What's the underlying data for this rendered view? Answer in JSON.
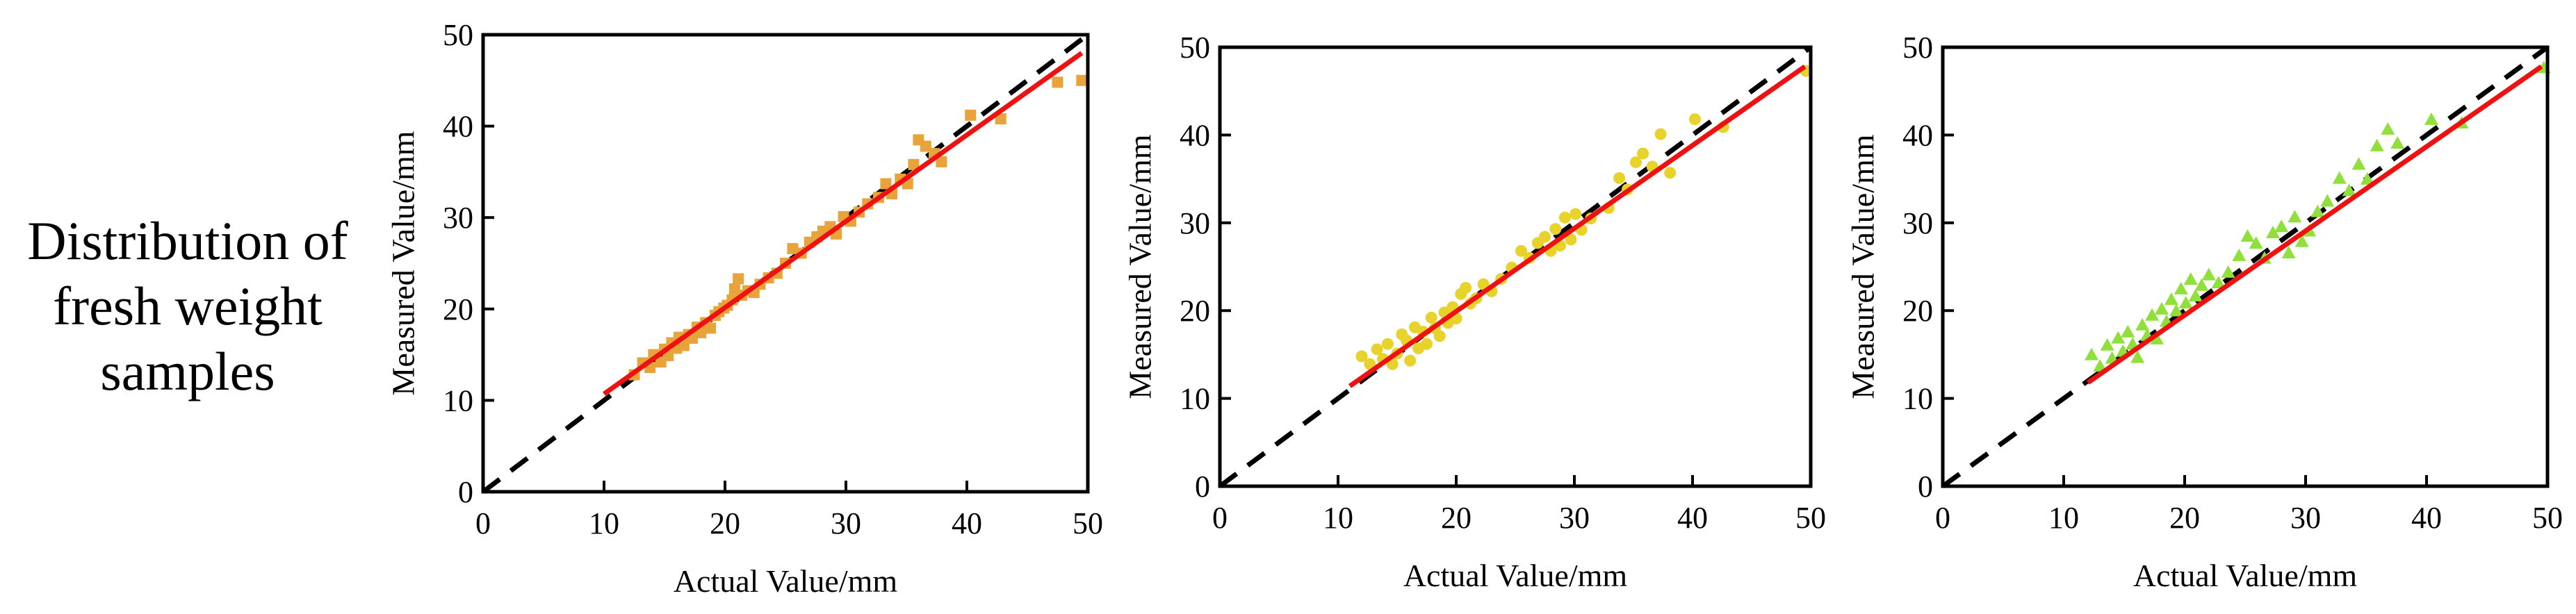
{
  "row_label": {
    "lines": [
      "Distribution of",
      "fresh weight",
      "samples"
    ]
  },
  "chart_data": [
    {
      "type": "scatter",
      "xlabel": "Actual Value/mm",
      "ylabel": "Measured Value/mm",
      "xlim": [
        0,
        50
      ],
      "ylim": [
        0,
        50
      ],
      "xticks": [
        "0",
        "10",
        "20",
        "30",
        "40",
        "50"
      ],
      "yticks": [
        "0",
        "10",
        "20",
        "30",
        "40",
        "50"
      ],
      "marker": "square",
      "marker_color": "#E8A33A",
      "fit_line": {
        "color": "#EE1111",
        "x": [
          10,
          49.5
        ],
        "y": [
          10.7,
          48.0
        ]
      },
      "identity_line": {
        "color": "#000000",
        "x": [
          0,
          50
        ],
        "y": [
          0,
          50
        ]
      },
      "points": [
        [
          12.5,
          12.8
        ],
        [
          13.2,
          14.1
        ],
        [
          13.8,
          13.6
        ],
        [
          14.1,
          15.0
        ],
        [
          14.7,
          14.2
        ],
        [
          15.0,
          15.6
        ],
        [
          15.3,
          14.9
        ],
        [
          15.6,
          16.3
        ],
        [
          16.0,
          15.7
        ],
        [
          16.2,
          16.9
        ],
        [
          16.6,
          16.0
        ],
        [
          17.0,
          17.2
        ],
        [
          17.3,
          16.8
        ],
        [
          17.7,
          18.0
        ],
        [
          18.0,
          17.4
        ],
        [
          18.4,
          18.5
        ],
        [
          18.8,
          17.9
        ],
        [
          19.2,
          19.3
        ],
        [
          19.5,
          19.7
        ],
        [
          19.9,
          20.1
        ],
        [
          20.2,
          20.4
        ],
        [
          20.6,
          21.0
        ],
        [
          20.8,
          22.2
        ],
        [
          21.1,
          23.3
        ],
        [
          21.4,
          21.5
        ],
        [
          21.9,
          22.0
        ],
        [
          22.4,
          21.8
        ],
        [
          22.9,
          22.7
        ],
        [
          23.6,
          23.4
        ],
        [
          24.3,
          23.9
        ],
        [
          25.0,
          25.0
        ],
        [
          25.6,
          26.6
        ],
        [
          26.3,
          26.1
        ],
        [
          27.0,
          27.3
        ],
        [
          27.6,
          27.9
        ],
        [
          28.1,
          28.5
        ],
        [
          28.7,
          29.0
        ],
        [
          29.2,
          28.2
        ],
        [
          29.8,
          30.1
        ],
        [
          30.4,
          29.6
        ],
        [
          31.1,
          30.6
        ],
        [
          31.8,
          31.5
        ],
        [
          32.7,
          32.2
        ],
        [
          33.3,
          33.7
        ],
        [
          33.8,
          32.6
        ],
        [
          34.5,
          34.2
        ],
        [
          35.1,
          33.7
        ],
        [
          35.6,
          35.8
        ],
        [
          36.0,
          38.5
        ],
        [
          36.6,
          37.8
        ],
        [
          37.3,
          37.0
        ],
        [
          37.9,
          36.1
        ],
        [
          40.3,
          41.2
        ],
        [
          42.8,
          40.8
        ],
        [
          47.5,
          44.8
        ],
        [
          49.5,
          45.0
        ]
      ]
    },
    {
      "type": "scatter",
      "xlabel": "Actual Value/mm",
      "ylabel": "Measured Value/mm",
      "xlim": [
        0,
        50
      ],
      "ylim": [
        0,
        50
      ],
      "xticks": [
        "0",
        "10",
        "20",
        "30",
        "40",
        "50"
      ],
      "yticks": [
        "0",
        "10",
        "20",
        "30",
        "40",
        "50"
      ],
      "marker": "circle",
      "marker_color": "#E8D22C",
      "fit_line": {
        "color": "#EE1111",
        "x": [
          11,
          49.5
        ],
        "y": [
          11.4,
          47.8
        ]
      },
      "identity_line": {
        "color": "#000000",
        "x": [
          0,
          50
        ],
        "y": [
          0,
          50
        ]
      },
      "points": [
        [
          12.0,
          14.8
        ],
        [
          12.7,
          13.9
        ],
        [
          13.3,
          15.6
        ],
        [
          13.8,
          14.5
        ],
        [
          14.2,
          16.2
        ],
        [
          14.6,
          13.9
        ],
        [
          15.0,
          15.1
        ],
        [
          15.4,
          17.3
        ],
        [
          15.8,
          16.6
        ],
        [
          16.1,
          14.3
        ],
        [
          16.5,
          18.1
        ],
        [
          16.8,
          15.7
        ],
        [
          17.2,
          17.6
        ],
        [
          17.5,
          16.2
        ],
        [
          17.9,
          19.2
        ],
        [
          18.2,
          18.0
        ],
        [
          18.6,
          17.1
        ],
        [
          19.0,
          19.8
        ],
        [
          19.3,
          18.6
        ],
        [
          19.7,
          20.4
        ],
        [
          20.0,
          19.1
        ],
        [
          20.4,
          21.9
        ],
        [
          20.8,
          22.6
        ],
        [
          21.2,
          20.8
        ],
        [
          21.7,
          21.4
        ],
        [
          22.3,
          23.0
        ],
        [
          23.0,
          22.2
        ],
        [
          23.8,
          23.6
        ],
        [
          24.7,
          24.9
        ],
        [
          25.5,
          26.8
        ],
        [
          26.2,
          26.0
        ],
        [
          26.9,
          27.7
        ],
        [
          27.5,
          28.4
        ],
        [
          28.0,
          26.8
        ],
        [
          28.4,
          29.3
        ],
        [
          28.8,
          27.4
        ],
        [
          29.2,
          30.6
        ],
        [
          29.7,
          28.1
        ],
        [
          30.1,
          31.0
        ],
        [
          30.6,
          29.2
        ],
        [
          31.4,
          30.5
        ],
        [
          32.9,
          31.7
        ],
        [
          33.8,
          35.1
        ],
        [
          34.5,
          33.8
        ],
        [
          35.2,
          36.9
        ],
        [
          35.8,
          37.9
        ],
        [
          36.6,
          36.4
        ],
        [
          37.3,
          40.1
        ],
        [
          38.1,
          35.7
        ],
        [
          40.2,
          41.8
        ],
        [
          42.6,
          40.9
        ],
        [
          49.6,
          47.3
        ]
      ]
    },
    {
      "type": "scatter",
      "xlabel": "Actual Value/mm",
      "ylabel": "Measured Value/mm",
      "xlim": [
        0,
        50
      ],
      "ylim": [
        0,
        50
      ],
      "xticks": [
        "0",
        "10",
        "20",
        "30",
        "40",
        "50"
      ],
      "yticks": [
        "0",
        "10",
        "20",
        "30",
        "40",
        "50"
      ],
      "marker": "triangle",
      "marker_color": "#8FE03A",
      "fit_line": {
        "color": "#EE1111",
        "x": [
          12,
          49.5
        ],
        "y": [
          11.8,
          47.8
        ]
      },
      "identity_line": {
        "color": "#000000",
        "x": [
          0,
          50
        ],
        "y": [
          0,
          50
        ]
      },
      "points": [
        [
          12.3,
          14.9
        ],
        [
          13.0,
          13.6
        ],
        [
          13.6,
          16.0
        ],
        [
          14.0,
          14.5
        ],
        [
          14.5,
          16.8
        ],
        [
          14.9,
          15.3
        ],
        [
          15.3,
          17.5
        ],
        [
          15.7,
          16.1
        ],
        [
          16.1,
          14.6
        ],
        [
          16.5,
          18.3
        ],
        [
          16.9,
          17.1
        ],
        [
          17.3,
          19.4
        ],
        [
          17.7,
          16.7
        ],
        [
          18.1,
          20.1
        ],
        [
          18.5,
          18.7
        ],
        [
          18.9,
          21.2
        ],
        [
          19.3,
          19.9
        ],
        [
          19.7,
          22.4
        ],
        [
          20.1,
          20.8
        ],
        [
          20.5,
          23.5
        ],
        [
          20.9,
          21.6
        ],
        [
          21.4,
          22.8
        ],
        [
          22.0,
          24.0
        ],
        [
          22.8,
          23.1
        ],
        [
          23.6,
          24.3
        ],
        [
          24.5,
          26.2
        ],
        [
          25.2,
          28.4
        ],
        [
          25.9,
          27.6
        ],
        [
          26.6,
          25.9
        ],
        [
          27.3,
          28.8
        ],
        [
          28.0,
          29.5
        ],
        [
          28.6,
          26.5
        ],
        [
          29.1,
          30.6
        ],
        [
          29.7,
          27.8
        ],
        [
          30.3,
          29.0
        ],
        [
          31.0,
          31.2
        ],
        [
          31.8,
          32.4
        ],
        [
          32.8,
          35.0
        ],
        [
          33.6,
          33.6
        ],
        [
          34.4,
          36.6
        ],
        [
          35.1,
          34.9
        ],
        [
          35.9,
          38.7
        ],
        [
          36.8,
          40.6
        ],
        [
          37.6,
          39.0
        ],
        [
          40.4,
          41.7
        ],
        [
          42.9,
          41.3
        ],
        [
          49.7,
          47.6
        ]
      ]
    }
  ]
}
